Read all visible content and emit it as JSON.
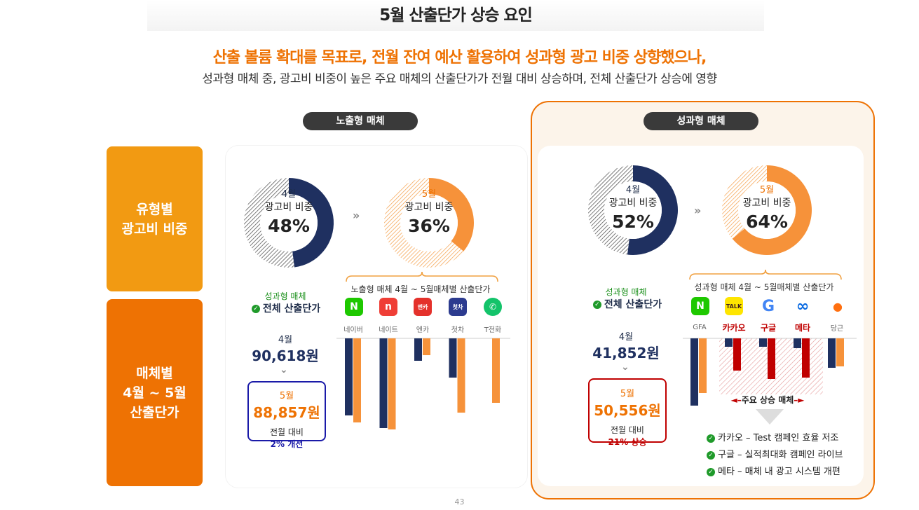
{
  "title": "5월 산출단가 상승 요인",
  "headline": "산출 볼륨 확대를 목표로, 전월 잔여 예산 활용하여 성과형 광고 비중 상향했으나,",
  "subline": "성과형 매체 중, 광고비 비중이 높은 주요 매체의 산출단가가 전월 대비 상승하며, 전체 산출단가 상승에 영향",
  "side_labels": [
    "유형별\n광고비 비중",
    "매체별\n4월 ~ 5월\n산출단가"
  ],
  "left_panel": {
    "pill": "노출형 매체",
    "donut_apr": {
      "month": "4월",
      "label": "광고비 비중",
      "value": "48%"
    },
    "donut_may": {
      "month": "5월",
      "label": "광고비 비중",
      "value": "36%"
    },
    "total_small": "성과형 매체",
    "total_label": "전체 산출단가",
    "apr_month": "4월",
    "apr_value": "90,618원",
    "may_month": "5월",
    "may_value": "88,857원",
    "compare_label": "전월 대비",
    "compare_value": "2% 개선",
    "brace_label": "노출형 매체 4월 ~ 5월매체별 산출단가",
    "media": [
      "네이버",
      "네이트",
      "엔카",
      "첫차",
      "T전화"
    ]
  },
  "right_panel": {
    "pill": "성과형 매체",
    "donut_apr": {
      "month": "4월",
      "label": "광고비 비중",
      "value": "52%"
    },
    "donut_may": {
      "month": "5월",
      "label": "광고비 비중",
      "value": "64%"
    },
    "total_small": "성과형 매체",
    "total_label": "전체 산출단가",
    "apr_month": "4월",
    "apr_value": "41,852원",
    "may_month": "5월",
    "may_value": "50,556원",
    "compare_label": "전월 대비",
    "compare_value": "21% 상승",
    "brace_label": "성과형 매체 4월 ~ 5월매체별 산출단가",
    "media": [
      "GFA",
      "카카오",
      "구글",
      "메타",
      "당근"
    ],
    "highlight_label": "주요 상승 매체",
    "bullets": [
      "카카오 – Test 캠페인 효율 저조",
      "구글 – 실적최대화 캠페인 라이브",
      "메타 – 매체 내 광고 시스템 개편"
    ]
  },
  "logo_text": {
    "naver": "N",
    "nate": "n",
    "encar": "엔카",
    "chacha": "첫차",
    "kakao": "TALK",
    "google": "G",
    "meta": "∞",
    "karrot": "●"
  },
  "page_number": "43",
  "colors": {
    "orange": "#ee7203",
    "orange_light": "#f6923a",
    "navy": "#1f3060",
    "red": "#c00000",
    "blue": "#1a1aa8",
    "green": "#1f9a2a"
  },
  "chart_data": [
    {
      "type": "pie",
      "series": [
        {
          "name": "4월",
          "values": [
            48,
            52
          ]
        },
        {
          "name": "5월",
          "values": [
            36,
            64
          ]
        }
      ],
      "categories": [
        "노출형 매체",
        "성과형 매체"
      ]
    },
    {
      "type": "bar",
      "categories": [
        "네이버",
        "네이트",
        "엔카",
        "첫차",
        "T전화"
      ],
      "series": [
        {
          "name": "4월",
          "values": [
            110,
            128,
            32,
            56,
            0
          ]
        },
        {
          "name": "5월",
          "values": [
            120,
            130,
            24,
            106,
            92
          ]
        }
      ]
    },
    {
      "type": "bar",
      "categories": [
        "GFA",
        "카카오",
        "구글",
        "메타",
        "당근"
      ],
      "series": [
        {
          "name": "4월",
          "values": [
            96,
            12,
            12,
            14,
            42
          ]
        },
        {
          "name": "5월",
          "values": [
            78,
            46,
            58,
            56,
            40
          ]
        }
      ]
    }
  ]
}
